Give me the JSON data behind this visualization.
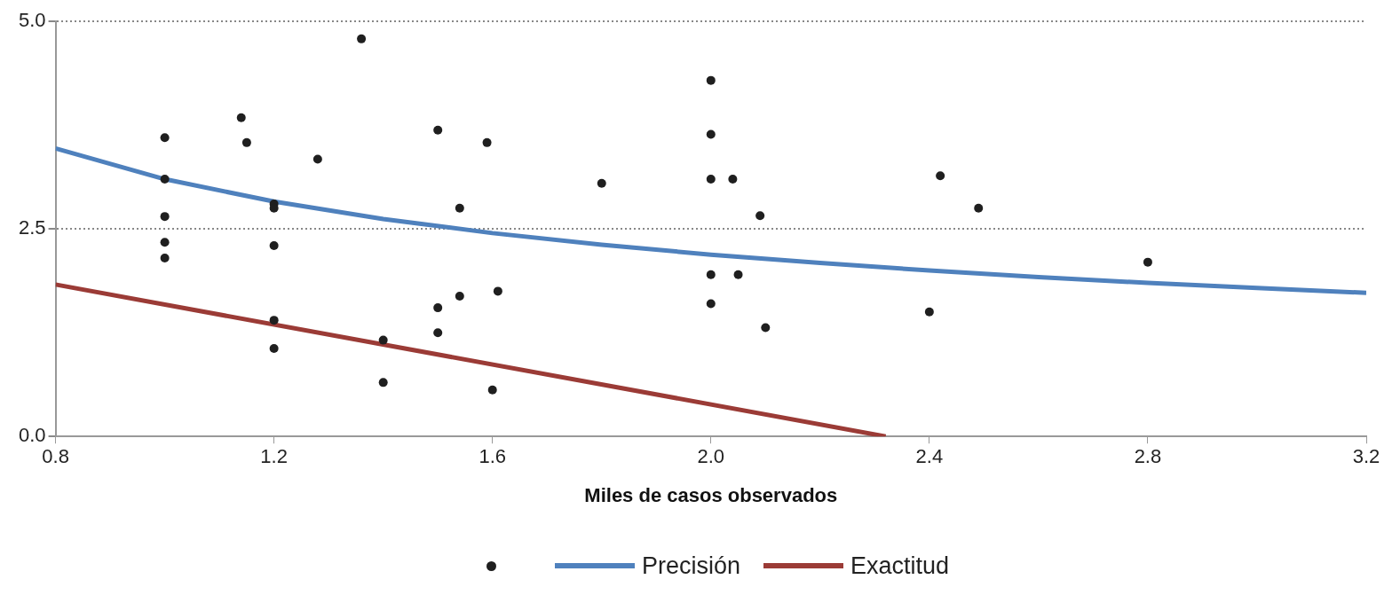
{
  "chart_data": {
    "type": "scatter",
    "xlabel": "Miles de casos observados",
    "xlim": [
      0.8,
      3.2
    ],
    "xticks": [
      {
        "value": 0.8,
        "label": "0.8"
      },
      {
        "value": 1.2,
        "label": "1.2"
      },
      {
        "value": 1.6,
        "label": "1.6"
      },
      {
        "value": 2.0,
        "label": "2.0"
      },
      {
        "value": 2.4,
        "label": "2.4"
      },
      {
        "value": 2.8,
        "label": "2.8"
      },
      {
        "value": 3.2,
        "label": "3.2"
      }
    ],
    "ylim": [
      0,
      5
    ],
    "yticks": [
      {
        "value": 0,
        "label": "0.0"
      },
      {
        "value": 2.5,
        "label": "2.5"
      },
      {
        "value": 5,
        "label": "5.0"
      }
    ],
    "grid": "y",
    "legend": "bottom",
    "marker": "circle",
    "series": [
      {
        "color": "#1f1f1f",
        "x": [
          1.0,
          1.0,
          1.0,
          1.0,
          1.0,
          1.14,
          1.15,
          1.2,
          1.2,
          1.2,
          1.2,
          1.2,
          1.28,
          1.36,
          1.4,
          1.4,
          1.5,
          1.5,
          1.5,
          1.54,
          1.54,
          1.59,
          1.6,
          1.61,
          1.8,
          2.0,
          2.0,
          2.0,
          2.0,
          2.0,
          2.04,
          2.05,
          2.09,
          2.1,
          2.4,
          2.42,
          2.49,
          2.8
        ],
        "values": [
          3.6,
          3.1,
          2.65,
          2.34,
          2.15,
          3.84,
          3.54,
          2.8,
          2.75,
          2.3,
          1.4,
          1.06,
          3.34,
          4.79,
          1.16,
          0.65,
          3.69,
          1.55,
          1.25,
          2.75,
          1.69,
          3.54,
          0.56,
          1.75,
          3.05,
          4.29,
          3.64,
          3.1,
          1.95,
          1.6,
          3.1,
          1.95,
          2.66,
          1.31,
          1.5,
          3.14,
          2.75,
          2.1
        ]
      },
      {
        "type": "line",
        "marker": "none",
        "name": "Precisión",
        "color": "#4f81bd",
        "x": [
          0.8,
          1.0,
          1.2,
          1.4,
          1.6,
          1.8,
          2.0,
          2.2,
          2.4,
          2.6,
          2.8,
          3.0,
          3.2
        ],
        "values": [
          3.47,
          3.1,
          2.83,
          2.62,
          2.45,
          2.31,
          2.19,
          2.09,
          2.0,
          1.92,
          1.85,
          1.79,
          1.73
        ]
      },
      {
        "type": "line",
        "marker": "none",
        "name": "Exactitud",
        "color": "#9b3b36",
        "x": [
          0.8,
          2.32
        ],
        "values": [
          1.83,
          0
        ]
      }
    ]
  }
}
